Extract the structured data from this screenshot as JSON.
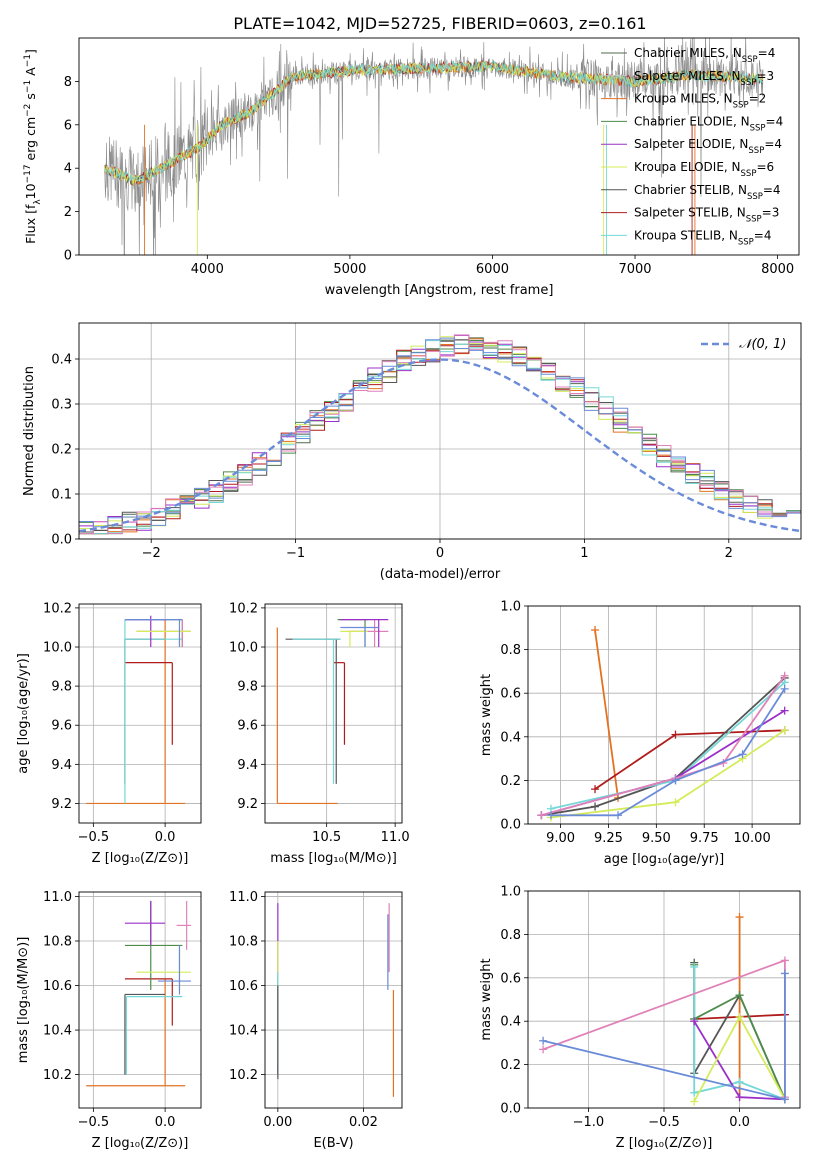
{
  "title": "PLATE=1042, MJD=52725, FIBERID=0603, z=0.161",
  "colors": {
    "cm": "#4f6b4f",
    "sm": "#c8c8c8",
    "km": "#e37222",
    "ce": "#4c8c4c",
    "se": "#9b30c8",
    "ke": "#d4ec5a",
    "cs": "#555555",
    "ss": "#b01c1c",
    "ks": "#74d8d8",
    "pink": "#e082b8",
    "blue": "#6a8bd8",
    "spectrum": "#888888",
    "normal": "#6a8bd8"
  },
  "chart_data": [
    {
      "id": "spectrum",
      "type": "line",
      "xlabel": "wavelength [Angstrom, rest frame]",
      "ylabel_parts": [
        "Flux [f",
        "λ",
        "10",
        "−17",
        " erg cm",
        "−2",
        " s",
        "−1",
        " A",
        "−1",
        "]"
      ],
      "xlim": [
        3100,
        8150
      ],
      "ylim": [
        0,
        10
      ],
      "xticks": [
        4000,
        5000,
        6000,
        7000,
        8000
      ],
      "yticks": [
        0,
        2,
        4,
        6,
        8
      ],
      "legend": [
        {
          "text": "Chabrier MILES, N",
          "sub": "SSP",
          "tail": "=4",
          "color_key": "cm"
        },
        {
          "text": "Salpeter MILES, N",
          "sub": "SSP",
          "tail": "=3",
          "color_key": "sm"
        },
        {
          "text": "Kroupa MILES, N",
          "sub": "SSP",
          "tail": "=2",
          "color_key": "km"
        },
        {
          "text": "Chabrier ELODIE, N",
          "sub": "SSP",
          "tail": "=4",
          "color_key": "ce"
        },
        {
          "text": "Salpeter ELODIE, N",
          "sub": "SSP",
          "tail": "=4",
          "color_key": "se"
        },
        {
          "text": "Kroupa ELODIE, N",
          "sub": "SSP",
          "tail": "=6",
          "color_key": "ke"
        },
        {
          "text": "Chabrier STELIB, N",
          "sub": "SSP",
          "tail": "=4",
          "color_key": "cs"
        },
        {
          "text": "Salpeter STELIB, N",
          "sub": "SSP",
          "tail": "=3",
          "color_key": "ss"
        },
        {
          "text": "Kroupa STELIB, N",
          "sub": "SSP",
          "tail": "=4",
          "color_key": "ks"
        }
      ],
      "continuum": [
        [
          3280,
          4.0
        ],
        [
          3500,
          3.4
        ],
        [
          3700,
          4.1
        ],
        [
          3950,
          5.0
        ],
        [
          4100,
          6.0
        ],
        [
          4300,
          6.6
        ],
        [
          4600,
          8.2
        ],
        [
          5000,
          8.5
        ],
        [
          5500,
          8.6
        ],
        [
          6000,
          8.7
        ],
        [
          6500,
          8.2
        ],
        [
          7000,
          8.0
        ],
        [
          7400,
          8.3
        ],
        [
          7900,
          8.1
        ]
      ]
    },
    {
      "id": "residuals",
      "type": "histogram",
      "xlabel": "(data-model)/error",
      "ylabel": "Normed distribution",
      "xlim": [
        -2.5,
        2.5
      ],
      "ylim": [
        0,
        0.48
      ],
      "xticks": [
        -2,
        -1,
        0,
        1,
        2
      ],
      "yticks": [
        0.0,
        0.1,
        0.2,
        0.3,
        0.4
      ],
      "legend": "𝒩(0, 1)",
      "bin_width": 0.1,
      "grid": true
    },
    {
      "id": "age_vs_z",
      "type": "errorbar",
      "xlabel": "Z [log₁₀(Z/Z⊙)]",
      "ylabel": "age  [log₁₀(age/yr)]",
      "xlim": [
        -0.6,
        0.25
      ],
      "ylim": [
        9.1,
        10.22
      ],
      "xticks": [
        -0.5,
        0.0
      ],
      "yticks": [
        9.2,
        9.4,
        9.6,
        9.8,
        10.0,
        10.2
      ],
      "points": [
        {
          "x": 0.0,
          "y": 9.2,
          "xl": -0.55,
          "xh": 0.14,
          "yl": 9.2,
          "yh": 10.14,
          "c": "km"
        },
        {
          "x": 0.05,
          "y": 9.92,
          "xl": -0.28,
          "xh": 0.05,
          "yl": 9.5,
          "yh": 9.92,
          "c": "ss"
        },
        {
          "x": -0.28,
          "y": 10.04,
          "xl": -0.28,
          "xh": 0.0,
          "yl": 9.3,
          "yh": 10.04,
          "c": "cs"
        },
        {
          "x": -0.28,
          "y": 10.04,
          "xl": -0.28,
          "xh": 0.12,
          "yl": 9.2,
          "yh": 10.14,
          "c": "ks"
        },
        {
          "x": 0.12,
          "y": 10.14,
          "xl": -0.27,
          "xh": 0.12,
          "yl": 10.0,
          "yh": 10.14,
          "c": "ce"
        },
        {
          "x": 0.12,
          "y": 10.08,
          "xl": -0.2,
          "xh": 0.18,
          "yl": 10.0,
          "yh": 10.14,
          "c": "pink"
        },
        {
          "x": -0.1,
          "y": 10.14,
          "xl": -0.28,
          "xh": 0.0,
          "yl": 10.0,
          "yh": 10.16,
          "c": "se"
        },
        {
          "x": 0.1,
          "y": 10.08,
          "xl": -0.2,
          "xh": 0.18,
          "yl": 10.0,
          "yh": 10.08,
          "c": "ke"
        },
        {
          "x": 0.1,
          "y": 10.14,
          "xl": -0.28,
          "xh": 0.12,
          "yl": 10.0,
          "yh": 10.14,
          "c": "blue"
        }
      ]
    },
    {
      "id": "age_vs_mass",
      "type": "errorbar",
      "xlabel": "mass [log₁₀(M/M⊙)]",
      "ylabel": "",
      "xlim": [
        10.05,
        11.05
      ],
      "ylim": [
        9.1,
        10.22
      ],
      "xticks": [
        10.5,
        11.0
      ],
      "yticks": [
        9.2,
        9.4,
        9.6,
        9.8,
        10.0,
        10.2
      ],
      "points": [
        {
          "x": 10.14,
          "y": 9.2,
          "xl": 10.14,
          "xh": 10.58,
          "yl": 9.2,
          "yh": 10.1,
          "c": "km"
        },
        {
          "x": 10.63,
          "y": 9.92,
          "xl": 10.55,
          "xh": 10.63,
          "yl": 9.5,
          "yh": 9.92,
          "c": "ss"
        },
        {
          "x": 10.57,
          "y": 10.04,
          "xl": 10.2,
          "xh": 10.6,
          "yl": 9.3,
          "yh": 10.04,
          "c": "cs"
        },
        {
          "x": 10.55,
          "y": 10.04,
          "xl": 10.25,
          "xh": 10.6,
          "yl": 9.3,
          "yh": 10.04,
          "c": "ks"
        },
        {
          "x": 10.78,
          "y": 10.14,
          "xl": 10.58,
          "xh": 10.8,
          "yl": 10.0,
          "yh": 10.14,
          "c": "ce"
        },
        {
          "x": 10.85,
          "y": 10.08,
          "xl": 10.65,
          "xh": 10.95,
          "yl": 10.0,
          "yh": 10.14,
          "c": "pink"
        },
        {
          "x": 10.88,
          "y": 10.14,
          "xl": 10.6,
          "xh": 10.95,
          "yl": 10.0,
          "yh": 10.14,
          "c": "se"
        },
        {
          "x": 10.67,
          "y": 10.08,
          "xl": 10.6,
          "xh": 10.8,
          "yl": 10.0,
          "yh": 10.08,
          "c": "ke"
        },
        {
          "x": 10.78,
          "y": 10.1,
          "xl": 10.6,
          "xh": 10.88,
          "yl": 10.0,
          "yh": 10.1,
          "c": "blue"
        }
      ]
    },
    {
      "id": "weight_vs_age",
      "type": "line",
      "xlabel": "age  [log₁₀(age/yr)]",
      "ylabel": "mass weight",
      "xlim": [
        8.83,
        10.25
      ],
      "ylim": [
        0,
        1.0
      ],
      "xticks": [
        9.0,
        9.25,
        9.5,
        9.75,
        10.0
      ],
      "yticks": [
        0.0,
        0.2,
        0.4,
        0.6,
        0.8,
        1.0
      ],
      "series": [
        {
          "c": "km",
          "pts": [
            [
              9.18,
              0.89
            ],
            [
              9.3,
              0.12
            ]
          ]
        },
        {
          "c": "ss",
          "pts": [
            [
              9.18,
              0.16
            ],
            [
              9.6,
              0.41
            ],
            [
              10.17,
              0.43
            ]
          ]
        },
        {
          "c": "cs",
          "pts": [
            [
              8.9,
              0.04
            ],
            [
              9.18,
              0.08
            ],
            [
              9.6,
              0.21
            ],
            [
              10.17,
              0.67
            ]
          ]
        },
        {
          "c": "ks",
          "pts": [
            [
              8.95,
              0.07
            ],
            [
              9.6,
              0.2
            ],
            [
              10.17,
              0.65
            ]
          ]
        },
        {
          "c": "se",
          "pts": [
            [
              8.9,
              0.04
            ],
            [
              9.6,
              0.21
            ],
            [
              10.17,
              0.52
            ]
          ]
        },
        {
          "c": "pink",
          "pts": [
            [
              8.9,
              0.04
            ],
            [
              9.6,
              0.21
            ],
            [
              9.85,
              0.28
            ],
            [
              10.17,
              0.68
            ]
          ]
        },
        {
          "c": "ke",
          "pts": [
            [
              8.95,
              0.03
            ],
            [
              9.6,
              0.1
            ],
            [
              9.95,
              0.3
            ],
            [
              10.17,
              0.43
            ]
          ]
        },
        {
          "c": "blue",
          "pts": [
            [
              8.95,
              0.04
            ],
            [
              9.3,
              0.04
            ],
            [
              9.6,
              0.2
            ],
            [
              9.95,
              0.32
            ],
            [
              10.17,
              0.62
            ]
          ]
        }
      ]
    },
    {
      "id": "mass_vs_z",
      "type": "errorbar",
      "xlabel": "Z [log₁₀(Z/Z⊙)]",
      "ylabel": "mass [log₁₀(M/M⊙)]",
      "xlim": [
        -0.6,
        0.25
      ],
      "ylim": [
        10.05,
        11.02
      ],
      "xticks": [
        -0.5,
        0.0
      ],
      "yticks": [
        10.2,
        10.4,
        10.6,
        10.8,
        11.0
      ],
      "points": [
        {
          "x": 0.0,
          "y": 10.15,
          "xl": -0.55,
          "xh": 0.14,
          "yl": 10.15,
          "yh": 10.63,
          "c": "km"
        },
        {
          "x": 0.05,
          "y": 10.63,
          "xl": -0.28,
          "xh": 0.05,
          "yl": 10.42,
          "yh": 10.63,
          "c": "ss"
        },
        {
          "x": -0.28,
          "y": 10.56,
          "xl": -0.28,
          "xh": 0.0,
          "yl": 10.2,
          "yh": 10.56,
          "c": "cs"
        },
        {
          "x": -0.27,
          "y": 10.55,
          "xl": -0.27,
          "xh": 0.12,
          "yl": 10.2,
          "yh": 10.55,
          "c": "ks"
        },
        {
          "x": -0.1,
          "y": 10.78,
          "xl": -0.28,
          "xh": 0.12,
          "yl": 10.58,
          "yh": 10.98,
          "c": "ce"
        },
        {
          "x": 0.15,
          "y": 10.87,
          "xl": 0.08,
          "xh": 0.18,
          "yl": 10.76,
          "yh": 10.98,
          "c": "pink"
        },
        {
          "x": -0.1,
          "y": 10.88,
          "xl": -0.28,
          "xh": 0.0,
          "yl": 10.78,
          "yh": 10.98,
          "c": "se"
        },
        {
          "x": 0.1,
          "y": 10.66,
          "xl": -0.2,
          "xh": 0.18,
          "yl": 10.58,
          "yh": 10.76,
          "c": "ke"
        },
        {
          "x": 0.1,
          "y": 10.62,
          "xl": -0.05,
          "xh": 0.18,
          "yl": 10.56,
          "yh": 10.78,
          "c": "blue"
        }
      ]
    },
    {
      "id": "mass_vs_ebv",
      "type": "errorbar",
      "xlabel": "E(B-V)",
      "ylabel": "",
      "xlim": [
        -0.003,
        0.029
      ],
      "ylim": [
        10.05,
        11.02
      ],
      "xticks": [
        0.0,
        0.02
      ],
      "yticks": [
        10.2,
        10.4,
        10.6,
        10.8,
        11.0
      ],
      "points": [
        {
          "x": 0.027,
          "y": 10.3,
          "xl": 0.027,
          "xh": 0.027,
          "yl": 10.1,
          "yh": 10.58,
          "c": "km"
        },
        {
          "x": 0.0,
          "y": 10.6,
          "xl": 0.0,
          "xh": 0.0,
          "yl": 10.2,
          "yh": 10.97,
          "c": "se"
        },
        {
          "x": 0.0,
          "y": 10.5,
          "xl": 0.0,
          "xh": 0.0,
          "yl": 10.25,
          "yh": 10.8,
          "c": "ke"
        },
        {
          "x": 0.0,
          "y": 10.4,
          "xl": 0.0,
          "xh": 0.0,
          "yl": 10.2,
          "yh": 10.66,
          "c": "ks"
        },
        {
          "x": 0.0,
          "y": 10.4,
          "xl": 0.0,
          "xh": 0.0,
          "yl": 10.18,
          "yh": 10.6,
          "c": "cs"
        },
        {
          "x": 0.026,
          "y": 10.8,
          "xl": 0.026,
          "xh": 0.026,
          "yl": 10.66,
          "yh": 10.97,
          "c": "pink"
        },
        {
          "x": 0.0257,
          "y": 10.75,
          "xl": 0.0257,
          "xh": 0.0257,
          "yl": 10.58,
          "yh": 10.92,
          "c": "blue"
        }
      ]
    },
    {
      "id": "weight_vs_z",
      "type": "line",
      "xlabel": "Z [log₁₀(Z/Z⊙)]",
      "ylabel": "mass weight",
      "xlim": [
        -1.4,
        0.4
      ],
      "ylim": [
        0,
        1.0
      ],
      "xticks": [
        -1.0,
        -0.5,
        0.0
      ],
      "yticks": [
        0.0,
        0.2,
        0.4,
        0.6,
        0.8,
        1.0
      ],
      "series": [
        {
          "c": "km",
          "pts": [
            [
              0.0,
              0.88
            ],
            [
              0.0,
              0.05
            ]
          ]
        },
        {
          "c": "ss",
          "pts": [
            [
              -0.3,
              0.41
            ],
            [
              0.3,
              0.43
            ]
          ]
        },
        {
          "c": "cs",
          "pts": [
            [
              -0.3,
              0.67
            ],
            [
              -0.3,
              0.16
            ],
            [
              0.0,
              0.52
            ],
            [
              0.3,
              0.04
            ]
          ]
        },
        {
          "c": "ce",
          "pts": [
            [
              -0.3,
              0.66
            ],
            [
              -0.3,
              0.41
            ],
            [
              0.0,
              0.52
            ],
            [
              0.3,
              0.04
            ]
          ]
        },
        {
          "c": "ks",
          "pts": [
            [
              -0.3,
              0.65
            ],
            [
              -0.3,
              0.07
            ],
            [
              0.0,
              0.12
            ],
            [
              0.3,
              0.04
            ]
          ]
        },
        {
          "c": "se",
          "pts": [
            [
              -0.3,
              0.4
            ],
            [
              0.0,
              0.05
            ],
            [
              0.3,
              0.04
            ]
          ]
        },
        {
          "c": "ke",
          "pts": [
            [
              -0.3,
              0.03
            ],
            [
              0.0,
              0.42
            ],
            [
              0.3,
              0.04
            ]
          ]
        },
        {
          "c": "pink",
          "pts": [
            [
              -1.3,
              0.27
            ],
            [
              0.3,
              0.68
            ],
            [
              0.3,
              0.05
            ]
          ]
        },
        {
          "c": "blue",
          "pts": [
            [
              -1.3,
              0.31
            ],
            [
              0.3,
              0.04
            ],
            [
              0.3,
              0.62
            ]
          ]
        }
      ]
    }
  ]
}
